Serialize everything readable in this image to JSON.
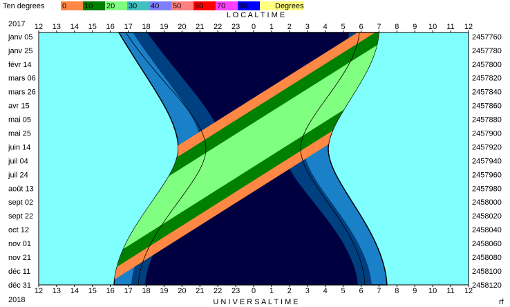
{
  "legend": {
    "title": "Ten degrees",
    "scale": [
      "0",
      "10",
      "20",
      "30",
      "40",
      "50",
      "60",
      "70",
      "80"
    ],
    "unit": "Degrees"
  },
  "top_axis": {
    "title": "L O C A L     T I M E",
    "year": "2017",
    "hours": [
      "12",
      "13",
      "14",
      "15",
      "16",
      "17",
      "18",
      "19",
      "20",
      "21",
      "22",
      "23",
      "0",
      "1",
      "2",
      "3",
      "4",
      "5",
      "6",
      "7",
      "8",
      "9",
      "10",
      "11",
      "12"
    ]
  },
  "left_axis": {
    "dates": [
      "janv 05",
      "janv 25",
      "févr 14",
      "mars 06",
      "mars 26",
      "avr 15",
      "mai 05",
      "mai 25",
      "juin 14",
      "juil 04",
      "juil 24",
      "août 13",
      "sept 02",
      "sept 22",
      "oct 12",
      "nov 01",
      "nov 21",
      "déc 11",
      "déc 31"
    ]
  },
  "right_axis": {
    "julian_days": [
      "2457760",
      "2457780",
      "2457800",
      "2457820",
      "2457840",
      "2457860",
      "2457880",
      "2457900",
      "2457920",
      "2457940",
      "2457960",
      "2457980",
      "2458000",
      "2458020",
      "2458040",
      "2458060",
      "2458080",
      "2458100",
      "2458120"
    ]
  },
  "bottom_axis": {
    "title": "U N I V E R S A L     T I M E",
    "year": "2018",
    "hours": [
      "12",
      "13",
      "14",
      "15",
      "16",
      "17",
      "18",
      "19",
      "20",
      "21",
      "22",
      "23",
      "0",
      "1",
      "2",
      "3",
      "4",
      "5",
      "6",
      "7",
      "8",
      "9",
      "10",
      "11",
      "12"
    ]
  },
  "corner": "rf"
}
